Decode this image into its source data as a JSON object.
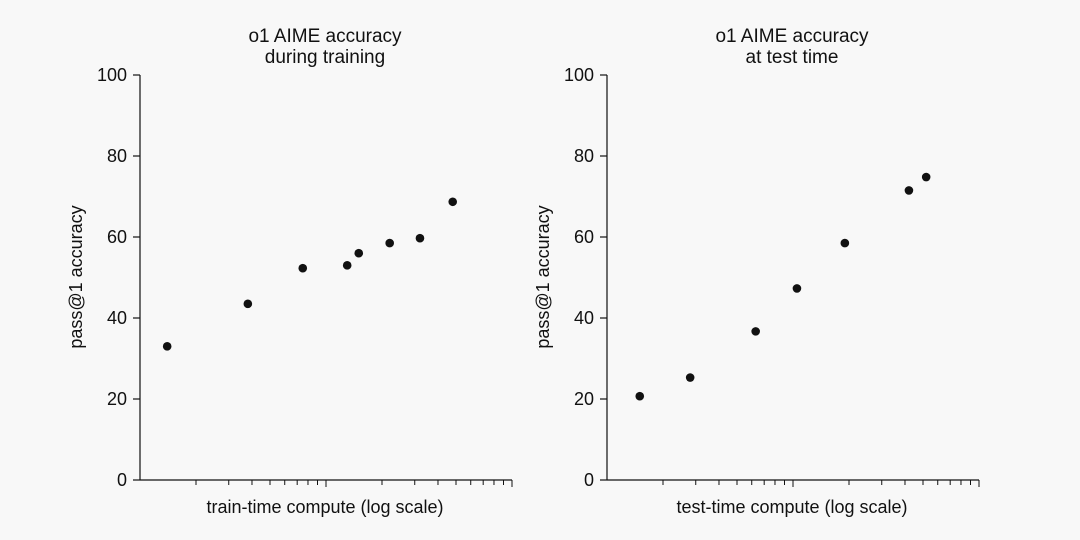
{
  "colors": {
    "background": "#f8f8f8",
    "ink": "#111111"
  },
  "chart_data": [
    {
      "type": "scatter",
      "title": "o1 AIME accuracy\nduring training",
      "xlabel": "train-time compute (log scale)",
      "ylabel": "pass@1 accuracy",
      "ylim": [
        0,
        100
      ],
      "yticks": [
        0,
        20,
        40,
        60,
        80,
        100
      ],
      "xscale": "log",
      "xlim": [
        1,
        100
      ],
      "x_tick_labels_shown": false,
      "grid": false,
      "x": [
        1.4,
        3.8,
        7.5,
        13,
        15,
        22,
        32,
        48
      ],
      "y": [
        33,
        43.5,
        52.3,
        53,
        56,
        58.5,
        59.7,
        68.7
      ]
    },
    {
      "type": "scatter",
      "title": "o1 AIME accuracy\nat test time",
      "xlabel": "test-time compute (log scale)",
      "ylabel": "pass@1 accuracy",
      "ylim": [
        0,
        100
      ],
      "yticks": [
        0,
        20,
        40,
        60,
        80,
        100
      ],
      "xscale": "log",
      "xlim": [
        1,
        100
      ],
      "x_tick_labels_shown": false,
      "grid": false,
      "x": [
        1.5,
        2.8,
        6.3,
        10.5,
        19,
        42,
        52
      ],
      "y": [
        20.7,
        25.3,
        36.7,
        47.3,
        58.5,
        71.5,
        74.8
      ]
    }
  ]
}
